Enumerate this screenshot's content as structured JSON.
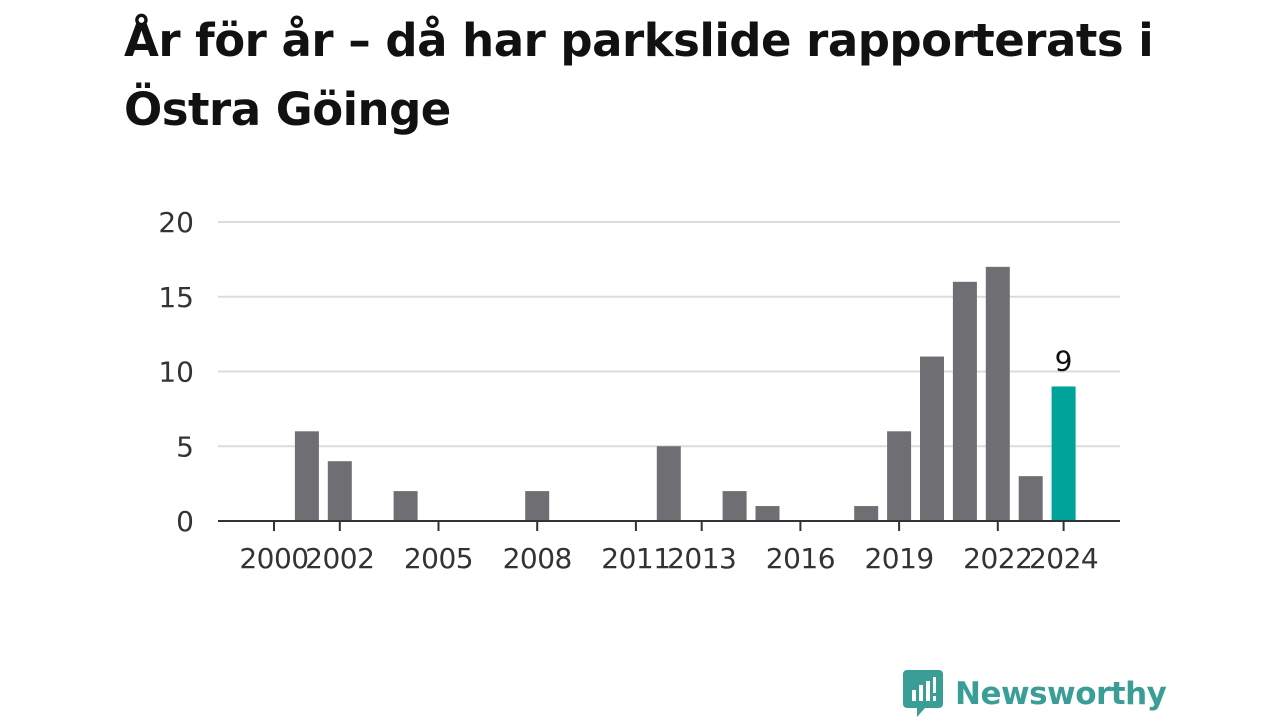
{
  "title": "År för år – då har parkslide rapporterats i Östra Göinge",
  "brand": {
    "name": "Newsworthy",
    "icon": "newsworthy-logo-icon",
    "color": "#3a9e96"
  },
  "chart_data": {
    "type": "bar",
    "title": "År för år – då har parkslide rapporterats i Östra Göinge",
    "xlabel": "",
    "ylabel": "",
    "ylim": [
      0,
      20
    ],
    "yticks": [
      0,
      5,
      10,
      15,
      20
    ],
    "xticks": [
      2000,
      2002,
      2005,
      2008,
      2011,
      2013,
      2016,
      2019,
      2022,
      2024
    ],
    "grid": true,
    "legend": "none",
    "categories": [
      2000,
      2001,
      2002,
      2003,
      2004,
      2005,
      2006,
      2007,
      2008,
      2009,
      2010,
      2011,
      2012,
      2013,
      2014,
      2015,
      2016,
      2017,
      2018,
      2019,
      2020,
      2021,
      2022,
      2023,
      2024
    ],
    "values": [
      0,
      6,
      4,
      0,
      2,
      0,
      0,
      0,
      2,
      0,
      0,
      0,
      5,
      0,
      2,
      1,
      0,
      0,
      1,
      6,
      11,
      16,
      17,
      3,
      9
    ],
    "highlight": {
      "category": 2024,
      "label": "9",
      "color": "#00a39a"
    },
    "bar_color": "#6f6e73"
  }
}
